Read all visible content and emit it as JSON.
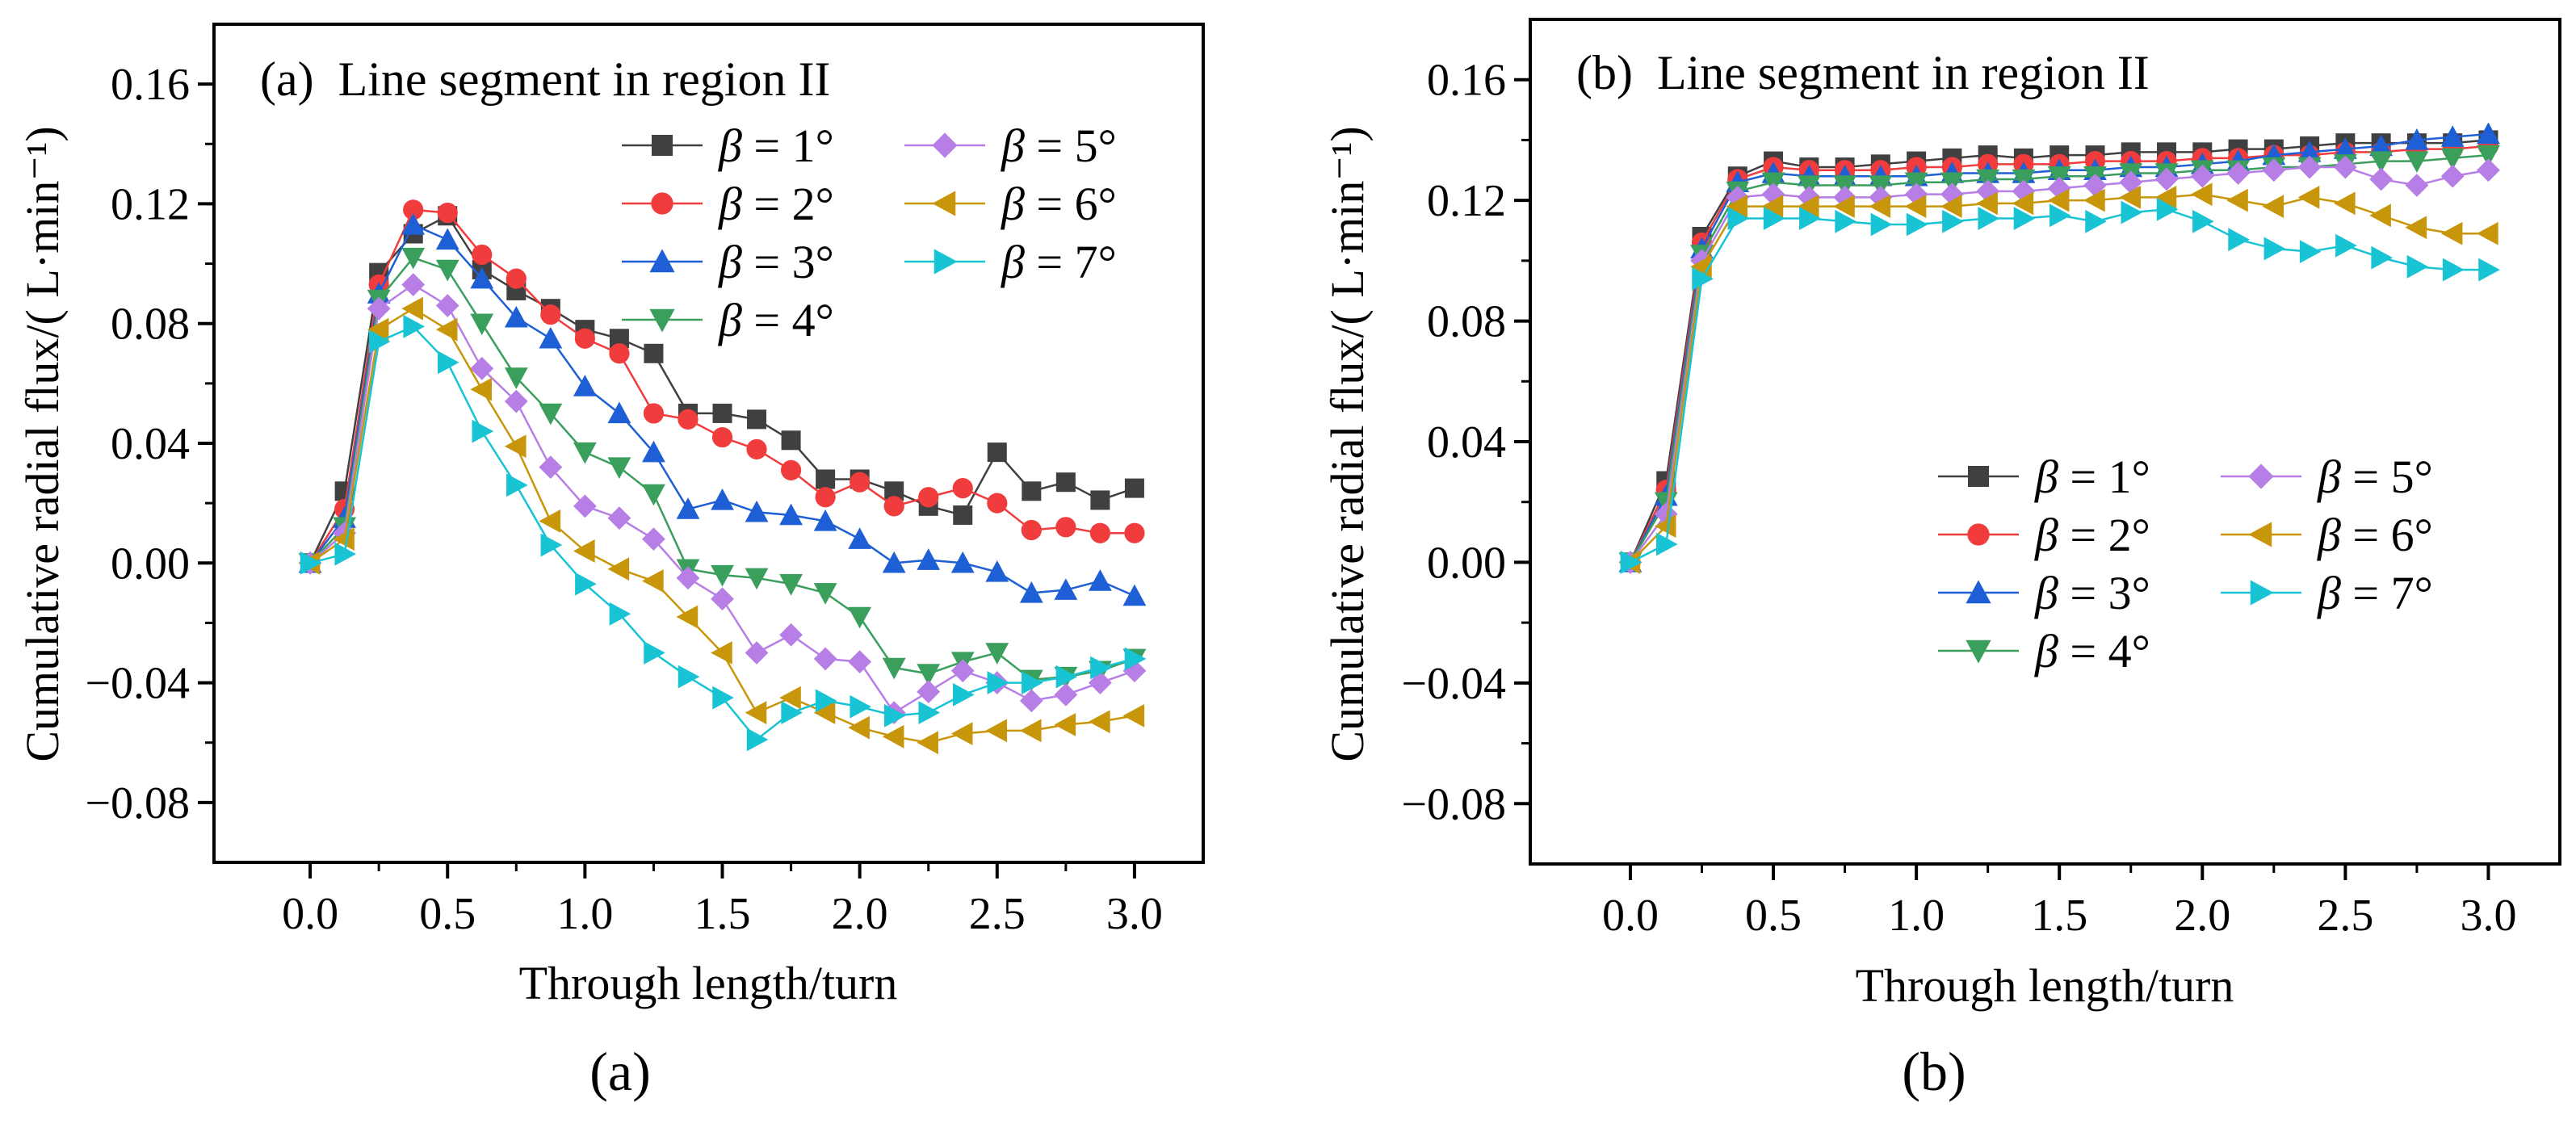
{
  "figure": {
    "subcaption_a": "(a)",
    "subcaption_b": "(b)"
  },
  "colors": {
    "beta1": "#404040",
    "beta2": "#f03c3c",
    "beta3": "#1f5fd6",
    "beta4": "#3a9e5c",
    "beta5": "#b77fe6",
    "beta6": "#c8960a",
    "beta7": "#18c3d4"
  },
  "markers": {
    "beta1": "square",
    "beta2": "circle",
    "beta3": "triangle-up",
    "beta4": "triangle-down",
    "beta5": "diamond",
    "beta6": "triangle-left",
    "beta7": "triangle-right"
  },
  "chart_data": [
    {
      "type": "line",
      "panel": "a",
      "title": "(a)  Line segment in region II",
      "xlabel": "Through length/turn",
      "ylabel": "Cumulative radial flux/( L·min⁻¹)",
      "xlim": [
        -0.35,
        3.25
      ],
      "ylim": [
        -0.1,
        0.18
      ],
      "xticks": [
        "0.0",
        "0.5",
        "1.0",
        "1.5",
        "2.0",
        "2.5",
        "3.0"
      ],
      "yticks": [
        "−0.08",
        "−0.04",
        "0.00",
        "0.04",
        "0.08",
        "0.12",
        "0.16"
      ],
      "legend_position": "top-right",
      "x": [
        0,
        0.125,
        0.25,
        0.375,
        0.5,
        0.625,
        0.75,
        0.875,
        1.0,
        1.125,
        1.25,
        1.375,
        1.5,
        1.625,
        1.75,
        1.875,
        2.0,
        2.125,
        2.25,
        2.375,
        2.5,
        2.625,
        2.75,
        2.875,
        3.0
      ],
      "series": [
        {
          "key": "beta1",
          "name": "β = 1°",
          "values": [
            0,
            0.024,
            0.097,
            0.11,
            0.116,
            0.098,
            0.091,
            0.085,
            0.078,
            0.075,
            0.07,
            0.05,
            0.05,
            0.048,
            0.041,
            0.028,
            0.028,
            0.024,
            0.019,
            0.016,
            0.037,
            0.024,
            0.027,
            0.021,
            0.025
          ]
        },
        {
          "key": "beta2",
          "name": "β = 2°",
          "values": [
            0,
            0.018,
            0.093,
            0.118,
            0.117,
            0.103,
            0.095,
            0.083,
            0.075,
            0.07,
            0.05,
            0.048,
            0.042,
            0.038,
            0.031,
            0.022,
            0.027,
            0.019,
            0.022,
            0.025,
            0.02,
            0.011,
            0.012,
            0.01,
            0.01
          ]
        },
        {
          "key": "beta3",
          "name": "β = 3°",
          "values": [
            0,
            0.015,
            0.09,
            0.113,
            0.108,
            0.095,
            0.082,
            0.075,
            0.059,
            0.05,
            0.037,
            0.018,
            0.021,
            0.017,
            0.016,
            0.014,
            0.008,
            0.0,
            0.001,
            0.0,
            -0.003,
            -0.01,
            -0.009,
            -0.006,
            -0.011
          ]
        },
        {
          "key": "beta4",
          "name": "β = 4°",
          "values": [
            0,
            0.012,
            0.088,
            0.102,
            0.098,
            0.08,
            0.062,
            0.05,
            0.037,
            0.032,
            0.023,
            -0.002,
            -0.004,
            -0.005,
            -0.007,
            -0.01,
            -0.018,
            -0.035,
            -0.037,
            -0.033,
            -0.03,
            -0.039,
            -0.038,
            -0.036,
            -0.032
          ]
        },
        {
          "key": "beta5",
          "name": "β = 5°",
          "values": [
            0,
            0.01,
            0.085,
            0.093,
            0.086,
            0.065,
            0.054,
            0.032,
            0.019,
            0.015,
            0.008,
            -0.005,
            -0.012,
            -0.03,
            -0.024,
            -0.032,
            -0.033,
            -0.05,
            -0.043,
            -0.036,
            -0.04,
            -0.046,
            -0.044,
            -0.04,
            -0.036
          ]
        },
        {
          "key": "beta6",
          "name": "β = 6°",
          "values": [
            0,
            0.008,
            0.078,
            0.085,
            0.078,
            0.058,
            0.039,
            0.014,
            0.004,
            -0.002,
            -0.006,
            -0.018,
            -0.03,
            -0.05,
            -0.045,
            -0.05,
            -0.055,
            -0.058,
            -0.06,
            -0.057,
            -0.056,
            -0.056,
            -0.054,
            -0.053,
            -0.051
          ]
        },
        {
          "key": "beta7",
          "name": "β = 7°",
          "values": [
            0,
            0.003,
            0.074,
            0.079,
            0.067,
            0.044,
            0.026,
            0.006,
            -0.007,
            -0.017,
            -0.03,
            -0.038,
            -0.045,
            -0.059,
            -0.05,
            -0.046,
            -0.048,
            -0.051,
            -0.05,
            -0.044,
            -0.04,
            -0.04,
            -0.038,
            -0.035,
            -0.032
          ]
        }
      ]
    },
    {
      "type": "line",
      "panel": "b",
      "title": "(b)  Line segment in region II",
      "xlabel": "Through length/turn",
      "ylabel": "Cumulative radial flux/( L·min⁻¹)",
      "xlim": [
        -0.35,
        3.25
      ],
      "ylim": [
        -0.1,
        0.18
      ],
      "xticks": [
        "0.0",
        "0.5",
        "1.0",
        "1.5",
        "2.0",
        "2.5",
        "3.0"
      ],
      "yticks": [
        "−0.08",
        "−0.04",
        "0.00",
        "0.04",
        "0.08",
        "0.12",
        "0.16"
      ],
      "legend_position": "center-right",
      "x": [
        0,
        0.125,
        0.25,
        0.375,
        0.5,
        0.625,
        0.75,
        0.875,
        1.0,
        1.125,
        1.25,
        1.375,
        1.5,
        1.625,
        1.75,
        1.875,
        2.0,
        2.125,
        2.25,
        2.375,
        2.5,
        2.625,
        2.75,
        2.875,
        3.0
      ],
      "series": [
        {
          "key": "beta1",
          "name": "β = 1°",
          "values": [
            0,
            0.027,
            0.108,
            0.128,
            0.133,
            0.131,
            0.131,
            0.132,
            0.133,
            0.134,
            0.135,
            0.134,
            0.135,
            0.135,
            0.136,
            0.136,
            0.136,
            0.137,
            0.137,
            0.138,
            0.139,
            0.139,
            0.139,
            0.139,
            0.14
          ]
        },
        {
          "key": "beta2",
          "name": "β = 2°",
          "values": [
            0,
            0.024,
            0.106,
            0.127,
            0.131,
            0.13,
            0.13,
            0.13,
            0.131,
            0.131,
            0.132,
            0.132,
            0.132,
            0.133,
            0.133,
            0.133,
            0.134,
            0.134,
            0.135,
            0.135,
            0.136,
            0.136,
            0.137,
            0.137,
            0.138
          ]
        },
        {
          "key": "beta3",
          "name": "β = 3°",
          "values": [
            0,
            0.022,
            0.104,
            0.126,
            0.129,
            0.128,
            0.128,
            0.128,
            0.128,
            0.129,
            0.129,
            0.129,
            0.13,
            0.13,
            0.131,
            0.131,
            0.132,
            0.133,
            0.135,
            0.136,
            0.137,
            0.138,
            0.14,
            0.141,
            0.142
          ]
        },
        {
          "key": "beta4",
          "name": "β = 4°",
          "values": [
            0,
            0.02,
            0.102,
            0.123,
            0.126,
            0.125,
            0.125,
            0.125,
            0.126,
            0.126,
            0.127,
            0.127,
            0.128,
            0.128,
            0.129,
            0.129,
            0.13,
            0.13,
            0.131,
            0.131,
            0.132,
            0.133,
            0.133,
            0.134,
            0.135
          ]
        },
        {
          "key": "beta5",
          "name": "β = 5°",
          "values": [
            0,
            0.016,
            0.1,
            0.121,
            0.122,
            0.121,
            0.121,
            0.121,
            0.122,
            0.122,
            0.123,
            0.123,
            0.124,
            0.125,
            0.126,
            0.127,
            0.128,
            0.129,
            0.13,
            0.131,
            0.131,
            0.127,
            0.125,
            0.128,
            0.13
          ]
        },
        {
          "key": "beta6",
          "name": "β = 6°",
          "values": [
            0,
            0.012,
            0.098,
            0.118,
            0.118,
            0.118,
            0.118,
            0.118,
            0.118,
            0.118,
            0.119,
            0.119,
            0.12,
            0.12,
            0.121,
            0.121,
            0.122,
            0.12,
            0.118,
            0.121,
            0.119,
            0.115,
            0.111,
            0.109,
            0.109
          ]
        },
        {
          "key": "beta7",
          "name": "β = 7°",
          "values": [
            0,
            0.006,
            0.094,
            0.114,
            0.114,
            0.114,
            0.113,
            0.112,
            0.112,
            0.113,
            0.114,
            0.114,
            0.115,
            0.113,
            0.116,
            0.117,
            0.113,
            0.107,
            0.104,
            0.103,
            0.105,
            0.101,
            0.098,
            0.097,
            0.097
          ]
        }
      ]
    }
  ]
}
